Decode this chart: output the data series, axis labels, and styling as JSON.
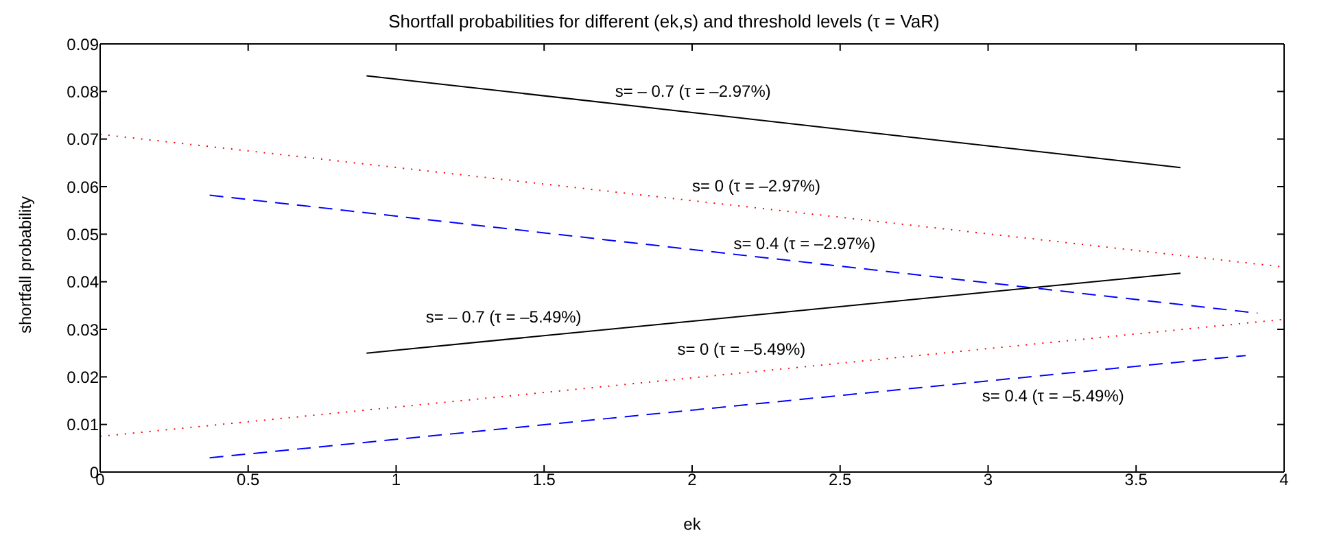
{
  "chart_data": {
    "type": "line",
    "title": "Shortfall probabilities for different (ek,s) and threshold levels (τ = VaR)",
    "xlabel": "ek",
    "ylabel": "shortfall probability",
    "xlim": [
      0,
      4
    ],
    "xticks": [
      0,
      0.5,
      1,
      1.5,
      2,
      2.5,
      3,
      3.5,
      4
    ],
    "ylim": [
      0,
      0.09
    ],
    "yticks": [
      0,
      0.01,
      0.02,
      0.03,
      0.04,
      0.05,
      0.06,
      0.07,
      0.08,
      0.09
    ],
    "legend": false,
    "marker": "none",
    "series": [
      {
        "color": "#000000",
        "line_style": "solid",
        "x": [
          0.9,
          3.65
        ],
        "values": [
          0.0833,
          0.064
        ]
      },
      {
        "color": "#ff0000",
        "line_style": "dotted",
        "x": [
          0,
          4
        ],
        "values": [
          0.071,
          0.0431
        ]
      },
      {
        "color": "#0000ff",
        "line_style": "dashed",
        "x": [
          0.37,
          3.91
        ],
        "values": [
          0.0582,
          0.0334
        ]
      },
      {
        "color": "#000000",
        "line_style": "solid",
        "x": [
          0.9,
          3.65
        ],
        "values": [
          0.025,
          0.0418
        ]
      },
      {
        "color": "#ff0000",
        "line_style": "dotted",
        "x": [
          0,
          4
        ],
        "values": [
          0.0075,
          0.0321
        ]
      },
      {
        "color": "#0000ff",
        "line_style": "dashed",
        "x": [
          0.37,
          3.87
        ],
        "values": [
          0.003,
          0.0245
        ]
      }
    ],
    "annotations": [
      "s= – 0.7 (τ = –2.97%)",
      "s= 0 (τ = –2.97%)",
      "s= 0.4 (τ = –2.97%)",
      "s= – 0.7 (τ = –5.49%)",
      "s= 0 (τ = –5.49%)",
      "s= 0.4 (τ = –5.49%)"
    ]
  }
}
